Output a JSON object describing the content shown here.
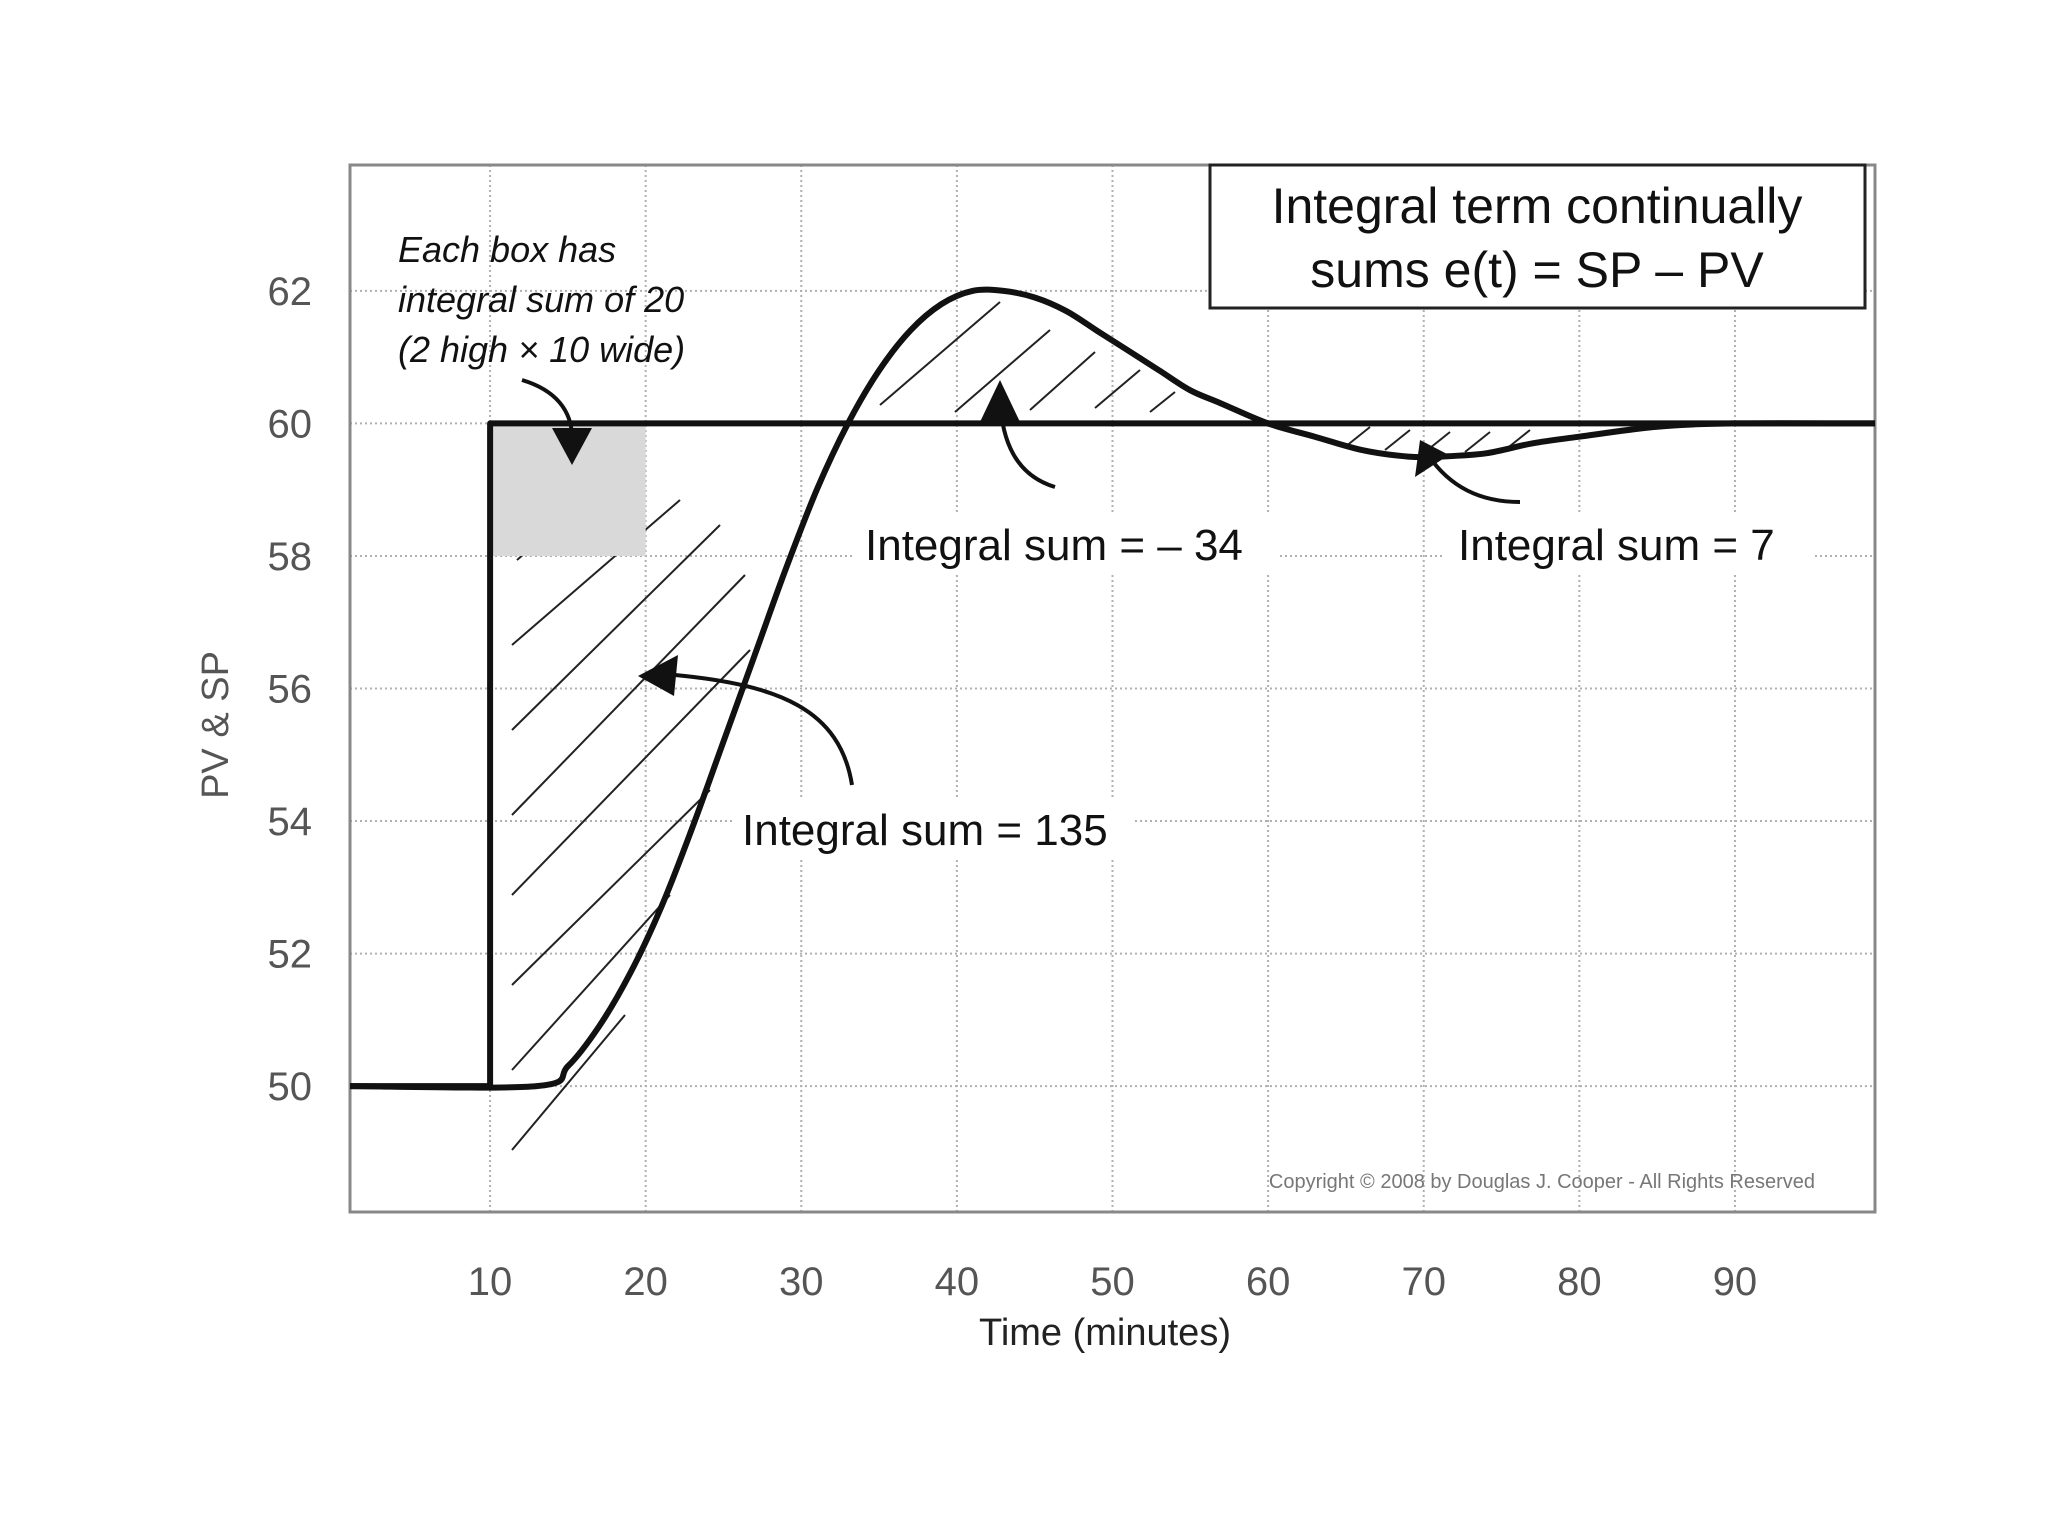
{
  "chart_data": {
    "type": "line",
    "title": "Integral term continually sums e(t) = SP – PV",
    "title_lines": [
      "Integral term continually",
      "sums e(t) = SP – PV"
    ],
    "xlabel": "Time (minutes)",
    "ylabel": "PV & SP",
    "xlim": [
      1,
      99
    ],
    "ylim": [
      48.1,
      63.9
    ],
    "xticks": [
      10,
      20,
      30,
      40,
      50,
      60,
      70,
      80,
      90
    ],
    "yticks": [
      50,
      52,
      54,
      56,
      58,
      60,
      62
    ],
    "grid": true,
    "series": [
      {
        "name": "SP",
        "x": [
          1,
          10,
          10,
          99
        ],
        "y": [
          50,
          50,
          60,
          60
        ]
      },
      {
        "name": "PV",
        "x": [
          1,
          13,
          15,
          17,
          19,
          21,
          23,
          25,
          27,
          29,
          31,
          33,
          35,
          37,
          39,
          41,
          43,
          45,
          47,
          49,
          51,
          53,
          55,
          57,
          60,
          63,
          66,
          69,
          71,
          74,
          77,
          80,
          85,
          90,
          99
        ],
        "y": [
          50,
          50,
          50.3,
          50.9,
          51.7,
          52.7,
          53.9,
          55.2,
          56.5,
          57.8,
          59.0,
          60.0,
          60.8,
          61.4,
          61.8,
          62.0,
          62.0,
          61.9,
          61.7,
          61.4,
          61.1,
          60.8,
          60.5,
          60.3,
          60.0,
          59.8,
          59.6,
          59.5,
          59.5,
          59.55,
          59.7,
          59.8,
          59.95,
          60.0,
          60.0
        ]
      }
    ],
    "shaded_box": {
      "x": [
        10,
        20
      ],
      "y": [
        58,
        60
      ],
      "area": 20
    },
    "annotations": [
      {
        "text": "Integral sum = 135",
        "x": 33,
        "y": 54
      },
      {
        "text": "Integral sum = – 34",
        "x": 41,
        "y": 58.2
      },
      {
        "text": "Integral sum = 7",
        "x": 78,
        "y": 58.2
      }
    ],
    "note_lines": [
      "Each box has",
      "integral sum of 20",
      "(2 high × 10 wide)"
    ],
    "copyright": "Copyright © 2008 by Douglas J. Cooper - All Rights Reserved"
  }
}
